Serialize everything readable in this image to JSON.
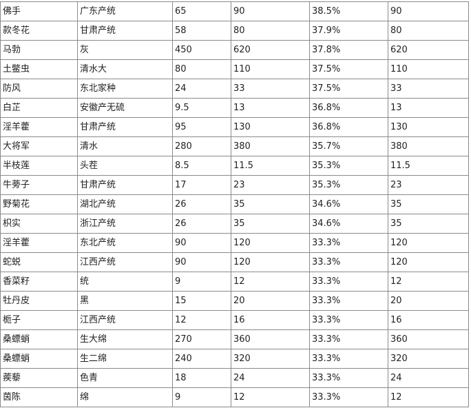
{
  "table": {
    "rows": [
      [
        "佛手",
        "广东产统",
        "65",
        "90",
        "38.5%",
        "90"
      ],
      [
        "款冬花",
        "甘肃产统",
        "58",
        "80",
        "37.9%",
        "80"
      ],
      [
        "马勃",
        "灰",
        "450",
        "620",
        "37.8%",
        "620"
      ],
      [
        "土鳖虫",
        "清水大",
        "80",
        "110",
        "37.5%",
        "110"
      ],
      [
        "防风",
        "东北家种",
        "24",
        "33",
        "37.5%",
        "33"
      ],
      [
        "白芷",
        "安徽产无硫",
        "9.5",
        "13",
        "36.8%",
        "13"
      ],
      [
        "淫羊藿",
        "甘肃产统",
        "95",
        "130",
        "36.8%",
        "130"
      ],
      [
        "大将军",
        "清水",
        "280",
        "380",
        "35.7%",
        "380"
      ],
      [
        "半枝莲",
        "头茬",
        "8.5",
        "11.5",
        "35.3%",
        "11.5"
      ],
      [
        "牛蒡子",
        "甘肃产统",
        "17",
        "23",
        "35.3%",
        "23"
      ],
      [
        "野菊花",
        "湖北产统",
        "26",
        "35",
        "34.6%",
        "35"
      ],
      [
        "枳实",
        "浙江产统",
        "26",
        "35",
        "34.6%",
        "35"
      ],
      [
        "淫羊藿",
        "东北产统",
        "90",
        "120",
        "33.3%",
        "120"
      ],
      [
        "蛇蜕",
        "江西产统",
        "90",
        "120",
        "33.3%",
        "120"
      ],
      [
        "香菜籽",
        "统",
        "9",
        "12",
        "33.3%",
        "12"
      ],
      [
        "牡丹皮",
        "黑",
        "15",
        "20",
        "33.3%",
        "20"
      ],
      [
        "栀子",
        "江西产统",
        "12",
        "16",
        "33.3%",
        "16"
      ],
      [
        "桑螵蛸",
        "生大绵",
        "270",
        "360",
        "33.3%",
        "360"
      ],
      [
        "桑螵蛸",
        "生二绵",
        "240",
        "320",
        "33.3%",
        "320"
      ],
      [
        "蒺藜",
        "色青",
        "18",
        "24",
        "33.3%",
        "24"
      ],
      [
        "茵陈",
        "绵",
        "9",
        "12",
        "33.3%",
        "12"
      ]
    ]
  }
}
